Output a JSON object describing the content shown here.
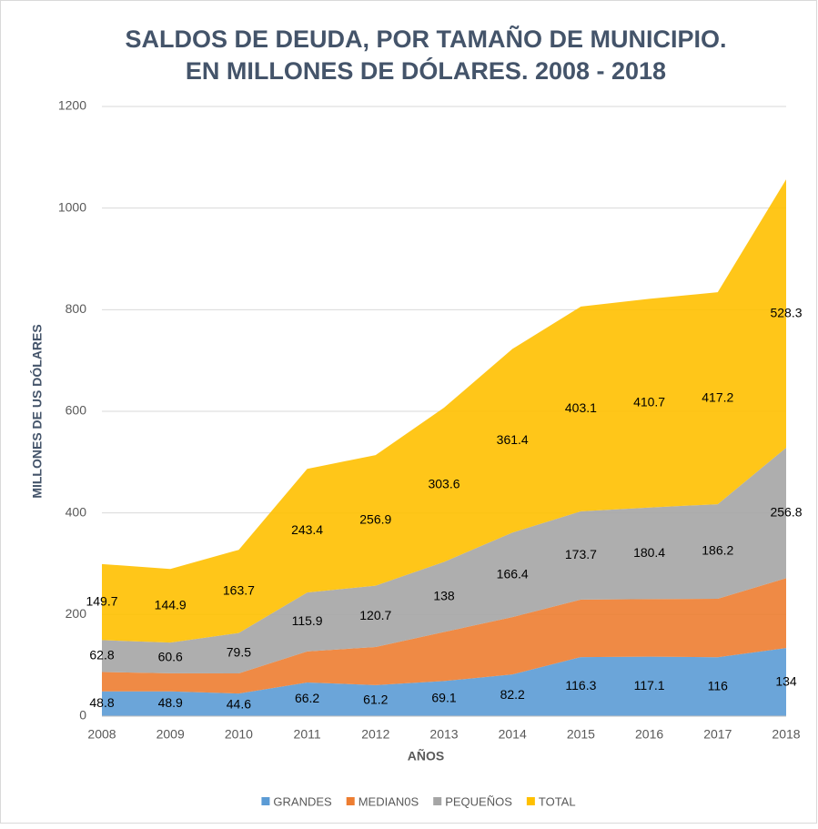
{
  "chart_data": {
    "type": "stacked_area",
    "title": [
      "SALDOS DE DEUDA, POR TAMAÑO DE MUNICIPIO.",
      "EN MILLONES DE DÓLARES. 2008 - 2018"
    ],
    "x_label": "AÑOS",
    "y_label": "MILLONES DE US DÓLARES",
    "categories": [
      "2008",
      "2009",
      "2010",
      "2011",
      "2012",
      "2013",
      "2014",
      "2015",
      "2016",
      "2017",
      "2018"
    ],
    "series": [
      {
        "name": "GRANDES",
        "color": "#5b9bd5",
        "data_labels": true,
        "values": [
          48.8,
          48.9,
          44.6,
          66.2,
          61.2,
          69.1,
          82.2,
          116.3,
          117.1,
          116,
          134
        ]
      },
      {
        "name": "MEDIAN0S",
        "color": "#ed7d31",
        "data_labels": false,
        "values": [
          38.1,
          35.4,
          39.6,
          61.3,
          75.0,
          96.5,
          112.8,
          113.1,
          113.2,
          115.0,
          137.5
        ]
      },
      {
        "name": "PEQUEÑOS",
        "color": "#a5a5a5",
        "data_labels": true,
        "values": [
          62.8,
          60.6,
          79.5,
          115.9,
          120.7,
          138,
          166.4,
          173.7,
          180.4,
          186.2,
          256.8
        ]
      },
      {
        "name": "TOTAL",
        "color": "#ffc000",
        "data_labels": true,
        "values": [
          149.7,
          144.9,
          163.7,
          243.4,
          256.9,
          303.6,
          361.4,
          403.1,
          410.7,
          417.2,
          528.3
        ]
      }
    ],
    "ylim": [
      0,
      1200
    ],
    "yticks": [
      0,
      200,
      400,
      600,
      800,
      1000,
      1200
    ],
    "grid": true,
    "legend": "bottom"
  }
}
